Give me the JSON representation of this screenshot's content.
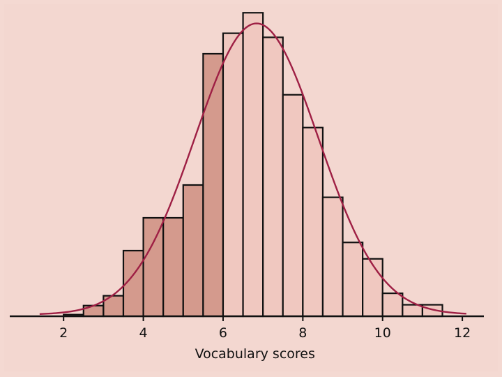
{
  "chart_data": {
    "type": "bar",
    "subtype": "histogram-with-normal-curve",
    "xlabel": "Vocabulary scores",
    "ylabel": "",
    "xlim": [
      1.0,
      12.4
    ],
    "ylim": [
      0,
      0.36
    ],
    "xticks": [
      "2",
      "4",
      "6",
      "8",
      "10",
      "12"
    ],
    "xtick_values": [
      2,
      4,
      6,
      8,
      10,
      12
    ],
    "bin_width": 0.5,
    "bins": [
      {
        "left": 2.0,
        "right": 2.5,
        "value": 0.002
      },
      {
        "left": 2.5,
        "right": 3.0,
        "value": 0.013
      },
      {
        "left": 3.0,
        "right": 3.5,
        "value": 0.025
      },
      {
        "left": 3.5,
        "right": 4.0,
        "value": 0.08
      },
      {
        "left": 4.0,
        "right": 4.5,
        "value": 0.12
      },
      {
        "left": 4.5,
        "right": 5.0,
        "value": 0.12
      },
      {
        "left": 5.0,
        "right": 5.5,
        "value": 0.16
      },
      {
        "left": 5.5,
        "right": 6.0,
        "value": 0.32
      },
      {
        "left": 6.0,
        "right": 6.5,
        "value": 0.345
      },
      {
        "left": 6.5,
        "right": 7.0,
        "value": 0.37
      },
      {
        "left": 7.0,
        "right": 7.5,
        "value": 0.34
      },
      {
        "left": 7.5,
        "right": 8.0,
        "value": 0.27
      },
      {
        "left": 8.0,
        "right": 8.5,
        "value": 0.23
      },
      {
        "left": 8.5,
        "right": 9.0,
        "value": 0.145
      },
      {
        "left": 9.0,
        "right": 9.5,
        "value": 0.09
      },
      {
        "left": 9.5,
        "right": 10.0,
        "value": 0.07
      },
      {
        "left": 10.0,
        "right": 10.5,
        "value": 0.028
      },
      {
        "left": 10.5,
        "right": 11.0,
        "value": 0.014
      },
      {
        "left": 11.0,
        "right": 11.5,
        "value": 0.014
      }
    ],
    "shaded_below": 6.0,
    "normal_curve": {
      "mean": 6.84,
      "sd": 1.55
    },
    "grid": false,
    "colors": {
      "background": "#f3d7d0",
      "bar_fill": "#f0c8c0",
      "bar_shaded_fill": "#d49a8d",
      "bar_stroke": "#111111",
      "curve": "#9e1f44",
      "axis": "#111111"
    }
  }
}
